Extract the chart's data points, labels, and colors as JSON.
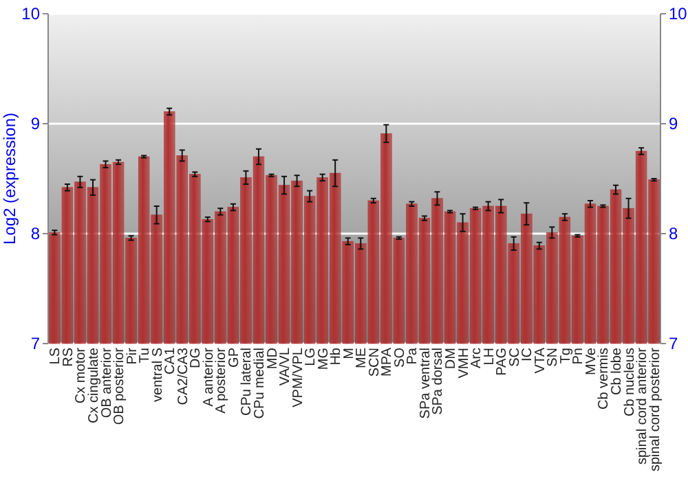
{
  "chart_data": {
    "type": "bar",
    "ylabel": "Log2 (expression)",
    "categories": [
      "LS",
      "RS",
      "Cx motor",
      "Cx cingulate",
      "OB anterior",
      "OB posterior",
      "Pir",
      "Tu",
      "ventral S",
      "CA1",
      "CA2/CA3",
      "DG",
      "A anterior",
      "A posterior",
      "GP",
      "CPu lateral",
      "CPu medial",
      "MD",
      "VA/VL",
      "VPM/VPL",
      "LG",
      "MG",
      "Hb",
      "M",
      "ME",
      "SCN",
      "MPA",
      "SO",
      "Pa",
      "SPa ventral",
      "SPa dorsal",
      "DM",
      "VMH",
      "Arc",
      "LH",
      "PAG",
      "SC",
      "IC",
      "VTA",
      "SN",
      "Tg",
      "Pn",
      "MVe",
      "Cb vermis",
      "Cb lobe",
      "Cb nucleus",
      "spinal cord anterior",
      "spinal cord posterior"
    ],
    "values": [
      8.01,
      8.42,
      8.47,
      8.42,
      8.63,
      8.65,
      7.96,
      8.7,
      8.17,
      9.11,
      8.71,
      8.54,
      8.13,
      8.2,
      8.24,
      8.51,
      8.7,
      8.53,
      8.44,
      8.48,
      8.34,
      8.51,
      8.55,
      7.93,
      7.91,
      8.3,
      8.91,
      7.96,
      8.27,
      8.14,
      8.32,
      8.2,
      8.1,
      8.23,
      8.25,
      8.25,
      7.91,
      8.18,
      7.89,
      8.01,
      8.15,
      7.98,
      8.27,
      8.25,
      8.4,
      8.23,
      8.75,
      8.49
    ],
    "errors": [
      0.02,
      0.03,
      0.05,
      0.07,
      0.03,
      0.02,
      0.02,
      0.01,
      0.08,
      0.03,
      0.05,
      0.02,
      0.02,
      0.03,
      0.03,
      0.06,
      0.07,
      0.01,
      0.08,
      0.05,
      0.05,
      0.03,
      0.12,
      0.03,
      0.05,
      0.02,
      0.08,
      0.01,
      0.02,
      0.02,
      0.06,
      0.01,
      0.08,
      0.01,
      0.04,
      0.06,
      0.06,
      0.1,
      0.03,
      0.05,
      0.03,
      0.01,
      0.03,
      0.01,
      0.04,
      0.09,
      0.03,
      0.01
    ],
    "color": "#b03030",
    "ylim": [
      7,
      10
    ],
    "yticks": [
      7,
      8,
      9,
      10
    ],
    "y2lim": [
      7,
      10
    ],
    "y2ticks": [
      7,
      8,
      9,
      10
    ],
    "grid": "y"
  }
}
